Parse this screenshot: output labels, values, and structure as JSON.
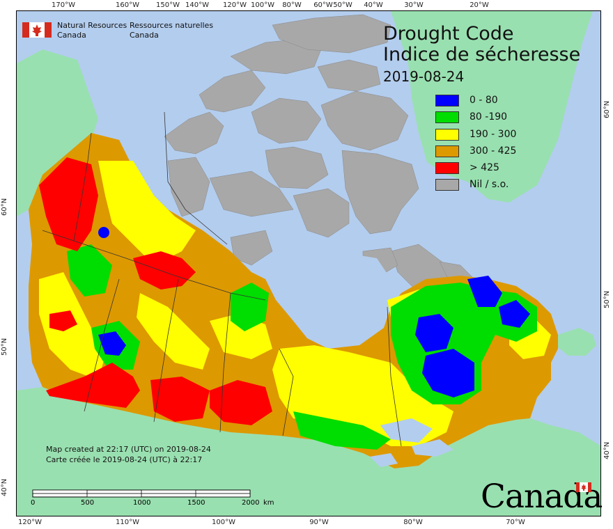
{
  "agency": {
    "name_en_line1": "Natural Resources",
    "name_en_line2": "Canada",
    "name_fr_line1": "Ressources naturelles",
    "name_fr_line2": "Canada",
    "flag_icon": "canada-flag-icon"
  },
  "title": {
    "line1": "Drought Code",
    "line2": "Indice de sécheresse",
    "date": "2019-08-24"
  },
  "legend": [
    {
      "label": "0 - 80",
      "color": "#0000ff"
    },
    {
      "label": "80 -190",
      "color": "#00dd00"
    },
    {
      "label": "190 - 300",
      "color": "#ffff00"
    },
    {
      "label": "300 - 425",
      "color": "#dd9900"
    },
    {
      "label": "> 425",
      "color": "#ff0000"
    },
    {
      "label": "Nil / s.o.",
      "color": "#a8a8a8"
    }
  ],
  "credit": {
    "en": "Map created at 22:17 (UTC) on 2019-08-24",
    "fr": "Carte créée le 2019-08-24 (UTC) à 22:17"
  },
  "scale": {
    "ticks": [
      "0",
      "500",
      "1000",
      "1500",
      "2000"
    ],
    "unit": "km"
  },
  "graticule": {
    "top": [
      "170°W",
      "160°W",
      "150°W",
      "140°W",
      "120°W",
      "100°W",
      "80°W",
      "60°W",
      "50°W",
      "40°W",
      "30°W",
      "20°W"
    ],
    "bottom": [
      "120°W",
      "110°W",
      "100°W",
      "90°W",
      "80°W",
      "70°W"
    ],
    "left": [
      "60°N",
      "50°N",
      "40°N"
    ],
    "right": [
      "60°N",
      "50°N",
      "40°N"
    ]
  },
  "wordmark": "Canada",
  "colors": {
    "water": "#b3cdee",
    "foreign_land": "#99e0b0",
    "no_data": "#a8a8a8"
  }
}
